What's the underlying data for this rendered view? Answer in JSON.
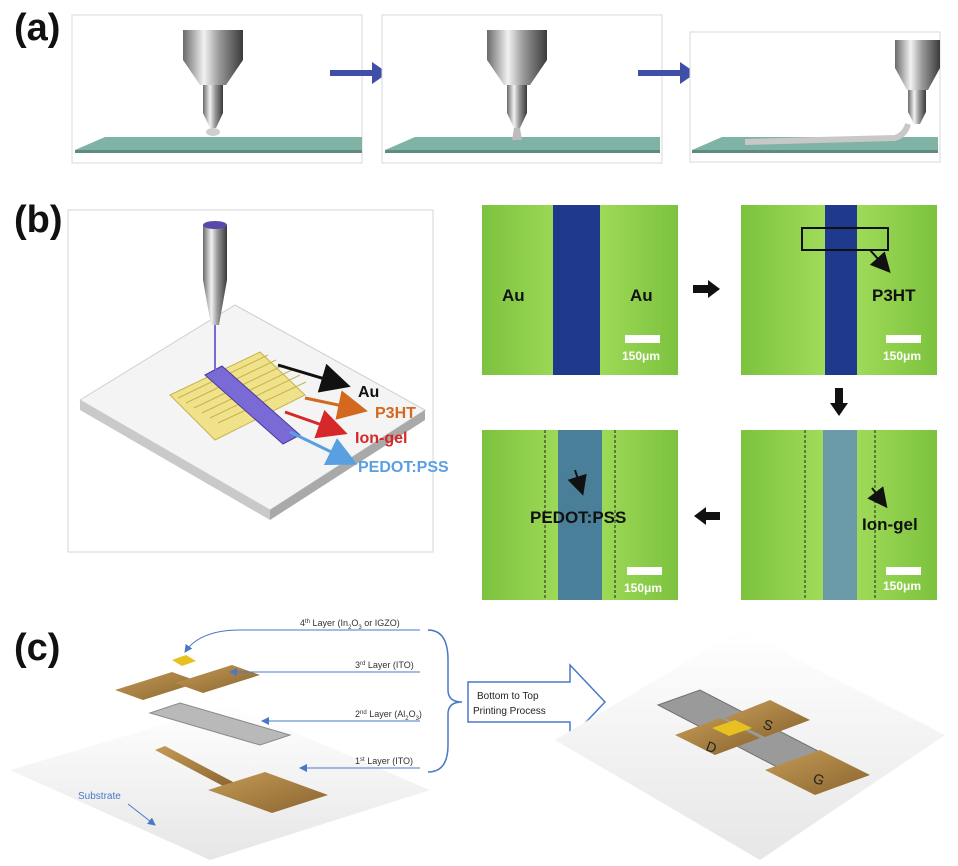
{
  "panel_labels": {
    "a": "(a)",
    "b": "(b)",
    "c": "(c)"
  },
  "panel_b": {
    "schematic_labels": {
      "au": "Au",
      "p3ht": "P3HT",
      "iongel": "Ion-gel",
      "pedot": "PEDOT:PSS"
    },
    "micrographs": {
      "m1": {
        "left": "Au",
        "right": "Au",
        "scale": "150μm"
      },
      "m2": {
        "label": "P3HT",
        "scale": "150μm"
      },
      "m3": {
        "label": "Ion-gel",
        "scale": "150μm"
      },
      "m4": {
        "label": "PEDOT:PSS",
        "scale": "150μm"
      }
    }
  },
  "panel_c": {
    "layers": [
      {
        "prefix": "4",
        "sup": "th",
        "text": " Layer (In",
        "sub": "2",
        "text2": "O",
        "sub2": "3",
        "text3": " or IGZO)"
      },
      {
        "prefix": "3",
        "sup": "rd",
        "text": " Layer (ITO)"
      },
      {
        "prefix": "2",
        "sup": "nd",
        "text": " Layer (Al",
        "sub": "2",
        "text2": "O",
        "sub2": "3",
        "text3": ")"
      },
      {
        "prefix": "1",
        "sup": "st",
        "text": " Layer (ITO)"
      }
    ],
    "substrate": "Substrate",
    "process_line1": "Bottom to Top",
    "process_line2": "Printing Process",
    "electrodes": {
      "d": "D",
      "s": "S",
      "g": "G"
    }
  },
  "colors": {
    "arrow_blue": "#3f4fa8",
    "substrate_green": "#6fa89a",
    "micrograph_green": "#8fd14f",
    "channel_blue": "#1f3a8c",
    "p3ht_orange": "#d2691e",
    "iongel_red": "#d62828",
    "pedot_blue": "#5aa0e0",
    "gold": "#a07a3a"
  }
}
